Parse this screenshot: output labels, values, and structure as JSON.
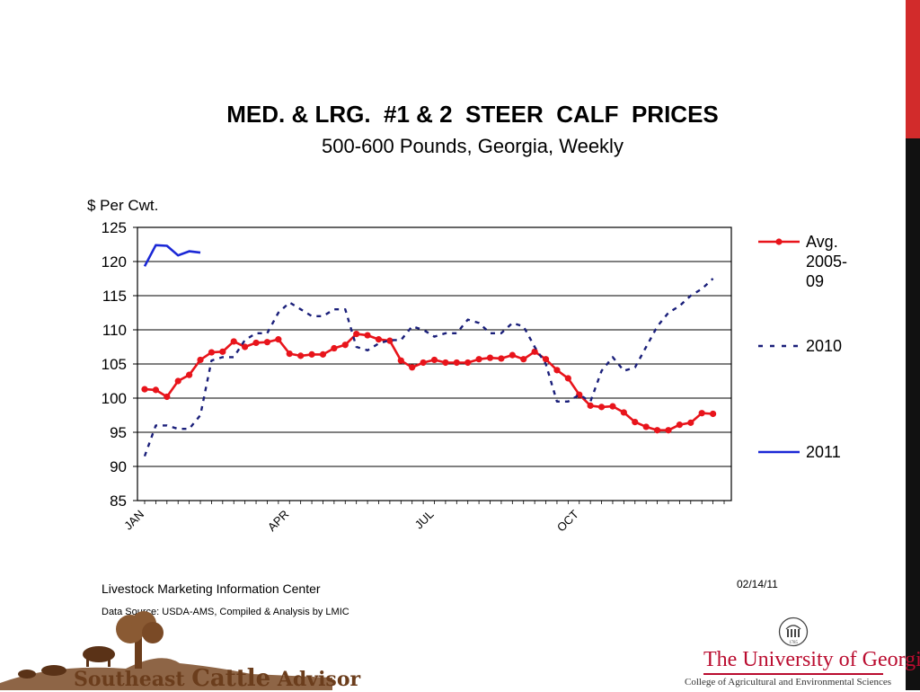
{
  "chart_data": {
    "type": "line",
    "title": "MED. & LRG.  #1 & 2  STEER  CALF  PRICES",
    "subtitle": "500-600 Pounds, Georgia, Weekly",
    "ylabel": "$ Per Cwt.",
    "ylim": [
      85,
      125
    ],
    "yticks": [
      85,
      90,
      95,
      100,
      105,
      110,
      115,
      120,
      125
    ],
    "xlim": [
      1,
      53
    ],
    "xticks": [
      {
        "label": "JAN",
        "week": 1
      },
      {
        "label": "APR",
        "week": 14
      },
      {
        "label": "JUL",
        "week": 27
      },
      {
        "label": "OCT",
        "week": 40
      }
    ],
    "grid": "horizontal",
    "legend_position": "right",
    "series": [
      {
        "name": "Avg. 2005-09",
        "legend_lines": [
          "Avg.",
          "2005-",
          "09"
        ],
        "style": "solid-markers",
        "color": "#e8141b",
        "values": [
          101.3,
          101.2,
          100.2,
          102.5,
          103.4,
          105.6,
          106.7,
          106.8,
          108.3,
          107.5,
          108.1,
          108.2,
          108.6,
          106.5,
          106.2,
          106.4,
          106.4,
          107.3,
          107.8,
          109.4,
          109.2,
          108.6,
          108.4,
          105.5,
          104.5,
          105.2,
          105.6,
          105.2,
          105.2,
          105.2,
          105.7,
          105.9,
          105.8,
          106.3,
          105.7,
          106.8,
          105.7,
          104.1,
          102.9,
          100.5,
          98.9,
          98.7,
          98.8,
          97.9,
          96.5,
          95.8,
          95.3,
          95.3,
          96.1,
          96.4,
          97.8,
          97.7
        ]
      },
      {
        "name": "2010",
        "legend_lines": [
          "2010"
        ],
        "style": "dashed",
        "color": "#1a1f7a",
        "values": [
          91.5,
          96.0,
          96.0,
          95.5,
          95.5,
          97.5,
          105.5,
          106.0,
          106.0,
          108.5,
          109.5,
          109.5,
          112.5,
          114.0,
          113.0,
          112.0,
          112.0,
          113.0,
          113.0,
          107.5,
          107.0,
          108.0,
          108.5,
          108.5,
          110.5,
          110.0,
          109.0,
          109.5,
          109.5,
          111.5,
          111.0,
          109.5,
          109.5,
          111.0,
          110.5,
          107.5,
          105.0,
          99.5,
          99.5,
          100.5,
          99.5,
          104.0,
          106.0,
          104.0,
          104.5,
          107.5,
          110.5,
          112.5,
          113.5,
          115.0,
          116.0,
          117.5
        ]
      },
      {
        "name": "2011",
        "legend_lines": [
          "2011"
        ],
        "style": "solid",
        "color": "#1b28d6",
        "values": [
          119.3,
          122.4,
          122.3,
          120.9,
          121.5,
          121.3
        ]
      }
    ]
  },
  "footer": {
    "source": "Livestock Marketing Information Center",
    "credit": "Data Source:  USDA-AMS, Compiled & Analysis by LMIC",
    "date": "02/14/11"
  },
  "logos": {
    "left_text_a": "Southeast",
    "left_text_b": "Cattle",
    "left_text_c": "Advisor",
    "uga_name": "The University of Georgia",
    "uga_college": "College of Agricultural and Environmental Sciences",
    "uga_seal_year": "1785"
  },
  "colors": {
    "accent_red": "#d22b2b",
    "side_bar_dark": "#111111",
    "uga_red": "#ba0c2f",
    "logo_brown": "#6b3d1c"
  }
}
